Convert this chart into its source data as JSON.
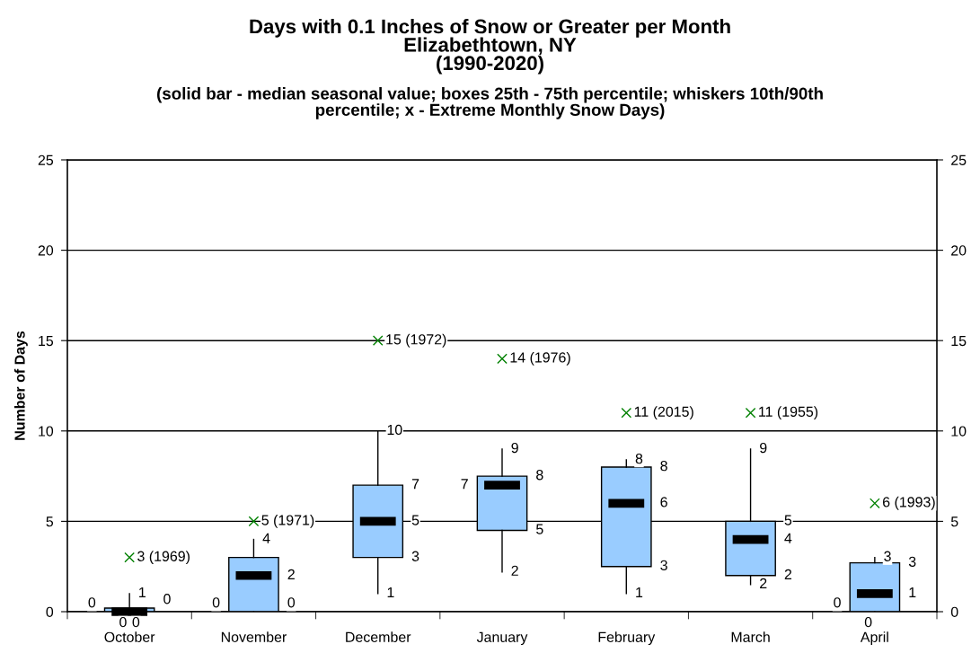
{
  "chart_data": {
    "type": "box",
    "title": "Days with 0.1 Inches of Snow or Greater per Month\nElizabethtown, NY\n(1990-2020)",
    "subtitle": "(solid bar - median seasonal value; boxes 25th - 75th percentile; whiskers 10th/90th\npercentile; x - Extreme Monthly Snow Days)",
    "ylabel": "Number of Days",
    "categories": [
      "October",
      "November",
      "December",
      "January",
      "February",
      "March",
      "April"
    ],
    "ylim": [
      0,
      25
    ],
    "yticks": [
      0,
      5,
      10,
      15,
      20,
      25
    ],
    "y2lim": [
      0,
      25
    ],
    "y2ticks": [
      0,
      5,
      10,
      15,
      20,
      25
    ],
    "grid": "y",
    "series": [
      {
        "type": "box",
        "color": "#99ccff",
        "boxes": [
          {
            "low": 0,
            "q1": 0,
            "median": 0,
            "q3": 0.2,
            "high": 1
          },
          {
            "low": 0,
            "q1": 0,
            "median": 2,
            "q3": 3,
            "high": 4
          },
          {
            "low": 1,
            "q1": 3,
            "median": 5,
            "q3": 7,
            "high": 10
          },
          {
            "low": 2.2,
            "q1": 4.5,
            "median": 7,
            "q3": 7.5,
            "high": 9
          },
          {
            "low": 1,
            "q1": 2.5,
            "median": 6,
            "q3": 8,
            "high": 8.4
          },
          {
            "low": 1.5,
            "q1": 2,
            "median": 4,
            "q3": 5,
            "high": 9
          },
          {
            "low": 0,
            "q1": 0,
            "median": 1,
            "q3": 2.7,
            "high": 3
          }
        ]
      },
      {
        "type": "scatter",
        "color": "#008000",
        "marker": "cross",
        "x": [
          "October",
          "November",
          "December",
          "January",
          "February",
          "March",
          "April"
        ],
        "values": [
          3,
          5,
          15,
          14,
          11,
          11,
          6
        ],
        "value_labels": [
          "3 (1969)",
          "5 (1971)",
          "15 (1972)",
          "14 (1976)",
          "11 (2015)",
          "11 (1955)",
          "6 (1993)"
        ]
      }
    ],
    "annotations": [
      {
        "text": "1",
        "x": "October",
        "y": 1
      },
      {
        "text": "0",
        "x": "October",
        "y": 0.2
      },
      {
        "text": "0",
        "x": "October",
        "y": 0
      },
      {
        "text": "0",
        "x": "October",
        "y": 0
      },
      {
        "text": "0",
        "x": "October",
        "y": 0
      },
      {
        "text": "4",
        "x": "November",
        "y": 4
      },
      {
        "text": "2",
        "x": "November",
        "y": 2
      },
      {
        "text": "0",
        "x": "November",
        "y": 0
      },
      {
        "text": "0",
        "x": "November",
        "y": 0
      },
      {
        "text": "10",
        "x": "December",
        "y": 10
      },
      {
        "text": "7",
        "x": "December",
        "y": 7
      },
      {
        "text": "5",
        "x": "December",
        "y": 5
      },
      {
        "text": "3",
        "x": "December",
        "y": 3
      },
      {
        "text": "1",
        "x": "December",
        "y": 1
      },
      {
        "text": "9",
        "x": "January",
        "y": 9
      },
      {
        "text": "8",
        "x": "January",
        "y": 7.5
      },
      {
        "text": "7",
        "x": "January",
        "y": 7
      },
      {
        "text": "5",
        "x": "January",
        "y": 4.5
      },
      {
        "text": "2",
        "x": "January",
        "y": 2.2
      },
      {
        "text": "8",
        "x": "February",
        "y": 8.4
      },
      {
        "text": "8",
        "x": "February",
        "y": 8
      },
      {
        "text": "6",
        "x": "February",
        "y": 6
      },
      {
        "text": "3",
        "x": "February",
        "y": 2.5
      },
      {
        "text": "1",
        "x": "February",
        "y": 1
      },
      {
        "text": "9",
        "x": "March",
        "y": 9
      },
      {
        "text": "5",
        "x": "March",
        "y": 5
      },
      {
        "text": "4",
        "x": "March",
        "y": 4
      },
      {
        "text": "2",
        "x": "March",
        "y": 2
      },
      {
        "text": "2",
        "x": "March",
        "y": 1.5
      },
      {
        "text": "3",
        "x": "April",
        "y": 3
      },
      {
        "text": "3",
        "x": "April",
        "y": 2.7
      },
      {
        "text": "1",
        "x": "April",
        "y": 1
      },
      {
        "text": "0",
        "x": "April",
        "y": 0
      },
      {
        "text": "0",
        "x": "April",
        "y": 0
      }
    ]
  }
}
